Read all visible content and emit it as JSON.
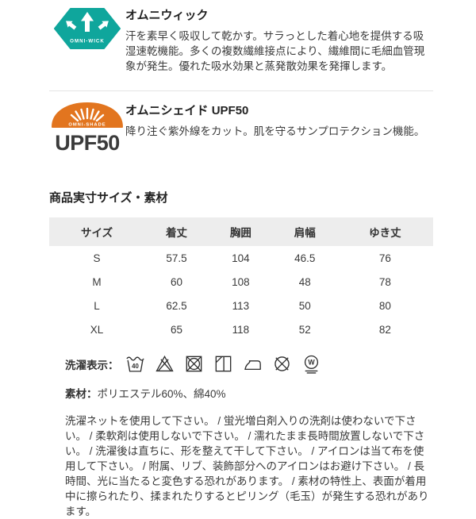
{
  "features": [
    {
      "title": "オムニウィック",
      "description": "汗を素早く吸収して乾かす。サラっとした着心地を提供する吸湿速乾機能。多くの複数繊維接点により、繊維間に毛細血管現象が発生。優れた吸水効果と蒸発散効果を発揮します。",
      "badge_text": "OMNI-WICK",
      "badge_color": "#0fa69c"
    },
    {
      "title": "オムニシェイド UPF50",
      "description": "降り注ぐ紫外線をカット。肌を守るサンプロテクション機能。",
      "badge_text": "OMNI-SHADE",
      "badge_sub": "UPF50",
      "badge_color": "#e2751f"
    }
  ],
  "size_section": {
    "heading": "商品実寸サイズ・素材",
    "table": {
      "headers": [
        "サイズ",
        "着丈",
        "胸囲",
        "肩幅",
        "ゆき丈"
      ],
      "rows": [
        [
          "S",
          "57.5",
          "104",
          "46.5",
          "76"
        ],
        [
          "M",
          "60",
          "108",
          "48",
          "78"
        ],
        [
          "L",
          "62.5",
          "113",
          "50",
          "80"
        ],
        [
          "XL",
          "65",
          "118",
          "52",
          "82"
        ]
      ]
    },
    "laundry_label": "洗濯表示：",
    "laundry_symbols": [
      "wash-40-icon",
      "do-not-bleach-icon",
      "do-not-tumble-dry-icon",
      "line-dry-in-shade-icon",
      "iron-icon",
      "do-not-dry-clean-icon",
      "wet-clean-icon"
    ],
    "wash_temp": "40",
    "wet_clean_letter": "W",
    "material_label": "素材：",
    "material_value": "ポリエステル60%、綿40%",
    "care_instructions": "洗濯ネットを使用して下さい。 / 蛍光増白剤入りの洗剤は使わないで下さい。 / 柔軟剤は使用しないで下さい。 / 濡れたまま長時間放置しないで下さい。 / 洗濯後は直ちに、形を整えて干して下さい。 / アイロンは当て布を使用して下さい。 / 附属、リブ、装飾部分へのアイロンはお避け下さい。 / 長時間、光に当たると変色する恐れがあります。 / 素材の特性上、表面が着用中に擦られたり、揉まれたりするとピリング（毛玉）が発生する恐れがあります。"
  }
}
